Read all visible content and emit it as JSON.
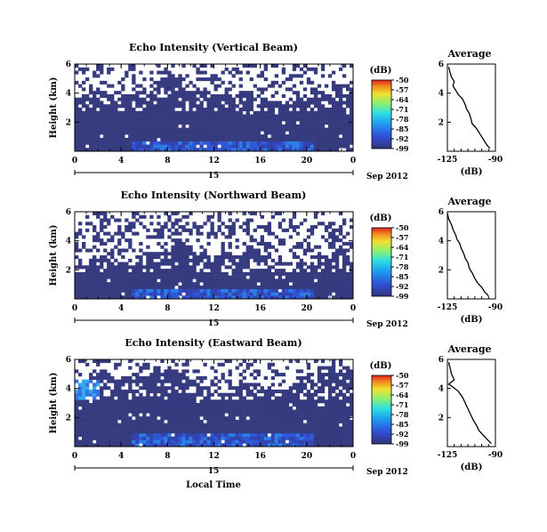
{
  "chart_data": [
    {
      "type": "heatmap",
      "title": "Echo Intensity (Vertical Beam)",
      "ylabel": "Height (km)",
      "x_ticks": [
        "0",
        "4",
        "8",
        "12",
        "16",
        "20",
        "0"
      ],
      "y_ticks": [
        "2",
        "4",
        "6"
      ],
      "xlim": [
        0,
        24
      ],
      "ylim": [
        0,
        6
      ],
      "date_label": "Sep 2012",
      "day_label": "15",
      "colorbar": {
        "unit": "(dB)",
        "ticks": [
          "-50",
          "-57",
          "-64",
          "-71",
          "-78",
          "-85",
          "-92",
          "-99"
        ]
      },
      "average": {
        "title": "Average",
        "xlabel": "(dB)",
        "x_ticks": [
          "-125",
          "-90"
        ],
        "xlim": [
          -125,
          -90
        ],
        "y_ticks": [
          "2",
          "4",
          "6"
        ],
        "profile": [
          [
            -94,
            0.2
          ],
          [
            -96,
            0.4
          ],
          [
            -98,
            0.7
          ],
          [
            -100,
            1.0
          ],
          [
            -102,
            1.3
          ],
          [
            -104,
            1.6
          ],
          [
            -107,
            1.9
          ],
          [
            -108,
            2.3
          ],
          [
            -109,
            2.6
          ],
          [
            -111,
            2.9
          ],
          [
            -112,
            3.2
          ],
          [
            -114,
            3.6
          ],
          [
            -117,
            3.9
          ],
          [
            -119,
            4.2
          ],
          [
            -121,
            4.5
          ],
          [
            -120,
            4.8
          ],
          [
            -122,
            5.1
          ],
          [
            -123,
            5.4
          ],
          [
            -124,
            5.8
          ]
        ]
      },
      "noise": 0.3,
      "dense": 2.8,
      "edge": 4.2,
      "hot": 0.6,
      "left_hot": 0.0,
      "seed": 11
    },
    {
      "type": "heatmap",
      "title": "Echo Intensity (Northward Beam)",
      "ylabel": "Height (km)",
      "x_ticks": [
        "0",
        "4",
        "8",
        "12",
        "16",
        "20",
        "0"
      ],
      "y_ticks": [
        "2",
        "4",
        "6"
      ],
      "xlim": [
        0,
        24
      ],
      "ylim": [
        0,
        6
      ],
      "date_label": "Sep 2012",
      "day_label": "15",
      "colorbar": {
        "unit": "(dB)",
        "ticks": [
          "-50",
          "-57",
          "-64",
          "-71",
          "-78",
          "-85",
          "-92",
          "-99"
        ]
      },
      "average": {
        "title": "Average",
        "xlabel": "(dB)",
        "x_ticks": [
          "-125",
          "-90"
        ],
        "xlim": [
          -125,
          -90
        ],
        "y_ticks": [
          "2",
          "4",
          "6"
        ],
        "profile": [
          [
            -95,
            0.2
          ],
          [
            -98,
            0.5
          ],
          [
            -100,
            0.8
          ],
          [
            -103,
            1.1
          ],
          [
            -105,
            1.4
          ],
          [
            -107,
            1.8
          ],
          [
            -109,
            2.1
          ],
          [
            -110,
            2.5
          ],
          [
            -112,
            2.8
          ],
          [
            -113,
            3.1
          ],
          [
            -115,
            3.5
          ],
          [
            -116,
            3.8
          ],
          [
            -118,
            4.1
          ],
          [
            -119,
            4.4
          ],
          [
            -121,
            4.8
          ],
          [
            -122,
            5.1
          ],
          [
            -124,
            5.5
          ],
          [
            -125,
            5.9
          ]
        ]
      },
      "noise": 0.35,
      "dense": 1.8,
      "edge": 3.0,
      "hot": 0.3,
      "left_hot": 0.0,
      "seed": 23
    },
    {
      "type": "heatmap",
      "title": "Echo Intensity (Eastward Beam)",
      "ylabel": "Height (km)",
      "x_ticks": [
        "0",
        "4",
        "8",
        "12",
        "16",
        "20",
        "0"
      ],
      "y_ticks": [
        "2",
        "4",
        "6"
      ],
      "xlim": [
        0,
        24
      ],
      "ylim": [
        0,
        6
      ],
      "date_label": "Sep 2012",
      "day_label": "15",
      "xlabel": "Local Time",
      "colorbar": {
        "unit": "(dB)",
        "ticks": [
          "-50",
          "-57",
          "-64",
          "-71",
          "-78",
          "-85",
          "-92",
          "-99"
        ]
      },
      "average": {
        "title": "Average",
        "xlabel": "(dB)",
        "x_ticks": [
          "-125",
          "-90"
        ],
        "xlim": [
          -125,
          -90
        ],
        "y_ticks": [
          "2",
          "4",
          "6"
        ],
        "profile": [
          [
            -93,
            0.2
          ],
          [
            -96,
            0.5
          ],
          [
            -99,
            0.8
          ],
          [
            -102,
            1.1
          ],
          [
            -104,
            1.5
          ],
          [
            -106,
            1.8
          ],
          [
            -108,
            2.2
          ],
          [
            -110,
            2.6
          ],
          [
            -112,
            3.0
          ],
          [
            -114,
            3.4
          ],
          [
            -117,
            3.8
          ],
          [
            -121,
            4.1
          ],
          [
            -124,
            4.3
          ],
          [
            -120,
            4.6
          ],
          [
            -122,
            5.0
          ],
          [
            -123,
            5.4
          ],
          [
            -124,
            5.8
          ]
        ]
      },
      "noise": 0.25,
      "dense": 3.2,
      "edge": 4.6,
      "hot": 0.8,
      "left_hot": 1.0,
      "seed": 37
    }
  ]
}
